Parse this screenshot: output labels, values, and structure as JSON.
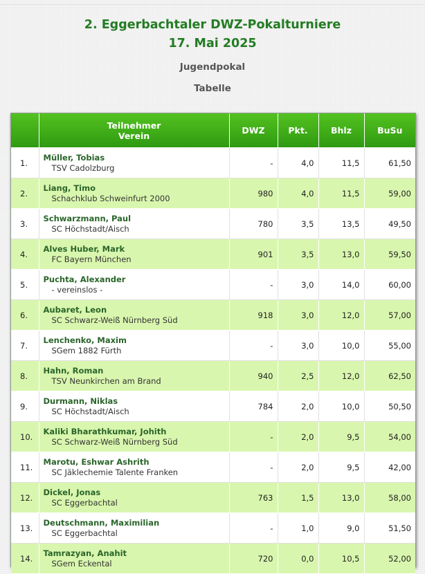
{
  "page": {
    "title": "2. Eggerbachtaler DWZ-Pokalturniere",
    "date": "17. Mai 2025",
    "category": "Jugendpokal",
    "section": "Tabelle"
  },
  "table": {
    "headers": {
      "participant": "Teilnehmer",
      "club": "Verein",
      "dwz": "DWZ",
      "pkt": "Pkt.",
      "bhlz": "Bhlz",
      "busu": "BuSu"
    },
    "rows": [
      {
        "rank": "1.",
        "name": "Müller, Tobias",
        "club": "TSV Cadolzburg",
        "dwz": "-",
        "pkt": "4,0",
        "bhlz": "11,5",
        "busu": "61,50"
      },
      {
        "rank": "2.",
        "name": "Liang, Timo",
        "club": "Schachklub Schweinfurt 2000",
        "dwz": "980",
        "pkt": "4,0",
        "bhlz": "11,5",
        "busu": "59,00"
      },
      {
        "rank": "3.",
        "name": "Schwarzmann, Paul",
        "club": "SC Höchstadt/Aisch",
        "dwz": "780",
        "pkt": "3,5",
        "bhlz": "13,5",
        "busu": "49,50"
      },
      {
        "rank": "4.",
        "name": "Alves Huber, Mark",
        "club": "FC Bayern München",
        "dwz": "901",
        "pkt": "3,5",
        "bhlz": "13,0",
        "busu": "59,50"
      },
      {
        "rank": "5.",
        "name": "Puchta, Alexander",
        "club": "- vereinslos -",
        "dwz": "-",
        "pkt": "3,0",
        "bhlz": "14,0",
        "busu": "60,00"
      },
      {
        "rank": "6.",
        "name": "Aubaret, Leon",
        "club": "SC Schwarz-Weiß Nürnberg Süd",
        "dwz": "918",
        "pkt": "3,0",
        "bhlz": "12,0",
        "busu": "57,00"
      },
      {
        "rank": "7.",
        "name": "Lenchenko, Maxim",
        "club": "SGem 1882 Fürth",
        "dwz": "-",
        "pkt": "3,0",
        "bhlz": "10,0",
        "busu": "55,00"
      },
      {
        "rank": "8.",
        "name": "Hahn, Roman",
        "club": "TSV Neunkirchen am Brand",
        "dwz": "940",
        "pkt": "2,5",
        "bhlz": "12,0",
        "busu": "62,50"
      },
      {
        "rank": "9.",
        "name": "Durmann, Niklas",
        "club": "SC Höchstadt/Aisch",
        "dwz": "784",
        "pkt": "2,0",
        "bhlz": "10,0",
        "busu": "50,50"
      },
      {
        "rank": "10.",
        "name": "Kaliki Bharathkumar, Johith",
        "club": "SC Schwarz-Weiß Nürnberg Süd",
        "dwz": "-",
        "pkt": "2,0",
        "bhlz": "9,5",
        "busu": "54,00"
      },
      {
        "rank": "11.",
        "name": "Marotu, Eshwar Ashrith",
        "club": "SC Jäklechemie Talente Franken",
        "dwz": "-",
        "pkt": "2,0",
        "bhlz": "9,5",
        "busu": "42,00"
      },
      {
        "rank": "12.",
        "name": "Dickel, Jonas",
        "club": "SC Eggerbachtal",
        "dwz": "763",
        "pkt": "1,5",
        "bhlz": "13,0",
        "busu": "58,00"
      },
      {
        "rank": "13.",
        "name": "Deutschmann, Maximilian",
        "club": "SC Eggerbachtal",
        "dwz": "-",
        "pkt": "1,0",
        "bhlz": "9,0",
        "busu": "51,50"
      },
      {
        "rank": "14.",
        "name": "Tamrazyan, Anahit",
        "club": "SGem Eckental",
        "dwz": "720",
        "pkt": "0,0",
        "bhlz": "10,5",
        "busu": "52,00"
      }
    ]
  }
}
